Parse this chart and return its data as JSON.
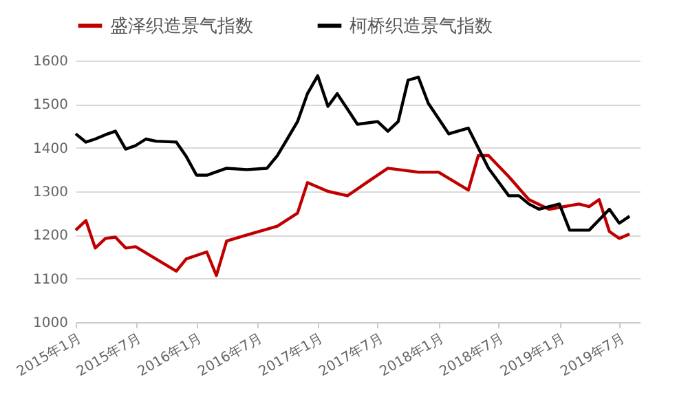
{
  "chart_data": {
    "type": "line",
    "legend": "top",
    "grid": "y",
    "line_style": "solid",
    "marker": "none",
    "xlim": [
      "2015-01",
      "2019-09"
    ],
    "xticks": [
      {
        "value": "2015-01",
        "label": "2015年1月"
      },
      {
        "value": "2015-07",
        "label": "2015年7月"
      },
      {
        "value": "2016-01",
        "label": "2016年1月"
      },
      {
        "value": "2016-07",
        "label": "2016年7月"
      },
      {
        "value": "2017-01",
        "label": "2017年1月"
      },
      {
        "value": "2017-07",
        "label": "2017年7月"
      },
      {
        "value": "2018-01",
        "label": "2018年1月"
      },
      {
        "value": "2018-07",
        "label": "2018年7月"
      },
      {
        "value": "2019-01",
        "label": "2019年1月"
      },
      {
        "value": "2019-07",
        "label": "2019年7月"
      }
    ],
    "ylim": [
      1000,
      1600
    ],
    "yticks": [
      1000,
      1100,
      1200,
      1300,
      1400,
      1500,
      1600
    ],
    "series": [
      {
        "name": "盛泽织造景气指数",
        "color": "#c00000",
        "x": [
          "2015-01",
          "2015-02",
          "2015-03",
          "2015-04",
          "2015-05",
          "2015-06",
          "2015-07",
          "2015-11",
          "2015-12",
          "2016-02",
          "2016-03",
          "2016-04",
          "2016-06",
          "2016-09",
          "2016-11",
          "2016-12",
          "2017-02",
          "2017-04",
          "2017-06",
          "2017-08",
          "2017-11",
          "2018-01",
          "2018-04",
          "2018-05",
          "2018-06",
          "2018-08",
          "2018-10",
          "2018-12",
          "2019-03",
          "2019-04",
          "2019-05",
          "2019-06",
          "2019-07",
          "2019-08"
        ],
        "values": [
          1211,
          1233,
          1170,
          1192,
          1195,
          1170,
          1173,
          1117,
          1145,
          1161,
          1107,
          1186,
          1200,
          1220,
          1250,
          1320,
          1300,
          1290,
          1322,
          1353,
          1344,
          1344,
          1303,
          1382,
          1382,
          1334,
          1281,
          1259,
          1271,
          1265,
          1281,
          1208,
          1192,
          1202
        ]
      },
      {
        "name": "柯桥织造景气指数",
        "color": "#000000",
        "x": [
          "2015-01",
          "2015-02",
          "2015-03",
          "2015-04",
          "2015-05",
          "2015-06",
          "2015-07",
          "2015-08",
          "2015-09",
          "2015-11",
          "2015-12",
          "2016-01",
          "2016-02",
          "2016-04",
          "2016-06",
          "2016-08",
          "2016-09",
          "2016-10",
          "2016-11",
          "2016-12",
          "2017-01",
          "2017-02",
          "2017-03",
          "2017-05",
          "2017-07",
          "2017-08",
          "2017-09",
          "2017-10",
          "2017-11",
          "2017-12",
          "2018-02",
          "2018-04",
          "2018-06",
          "2018-08",
          "2018-09",
          "2018-10",
          "2018-11",
          "2019-01",
          "2019-02",
          "2019-04",
          "2019-06",
          "2019-07",
          "2019-08"
        ],
        "values": [
          1432,
          1413,
          1420,
          1430,
          1438,
          1397,
          1405,
          1420,
          1415,
          1413,
          1380,
          1337,
          1337,
          1353,
          1350,
          1353,
          1382,
          1420,
          1460,
          1524,
          1565,
          1495,
          1524,
          1454,
          1460,
          1438,
          1460,
          1555,
          1562,
          1502,
          1432,
          1445,
          1353,
          1290,
          1290,
          1271,
          1259,
          1271,
          1211,
          1211,
          1259,
          1227,
          1243
        ]
      }
    ]
  }
}
